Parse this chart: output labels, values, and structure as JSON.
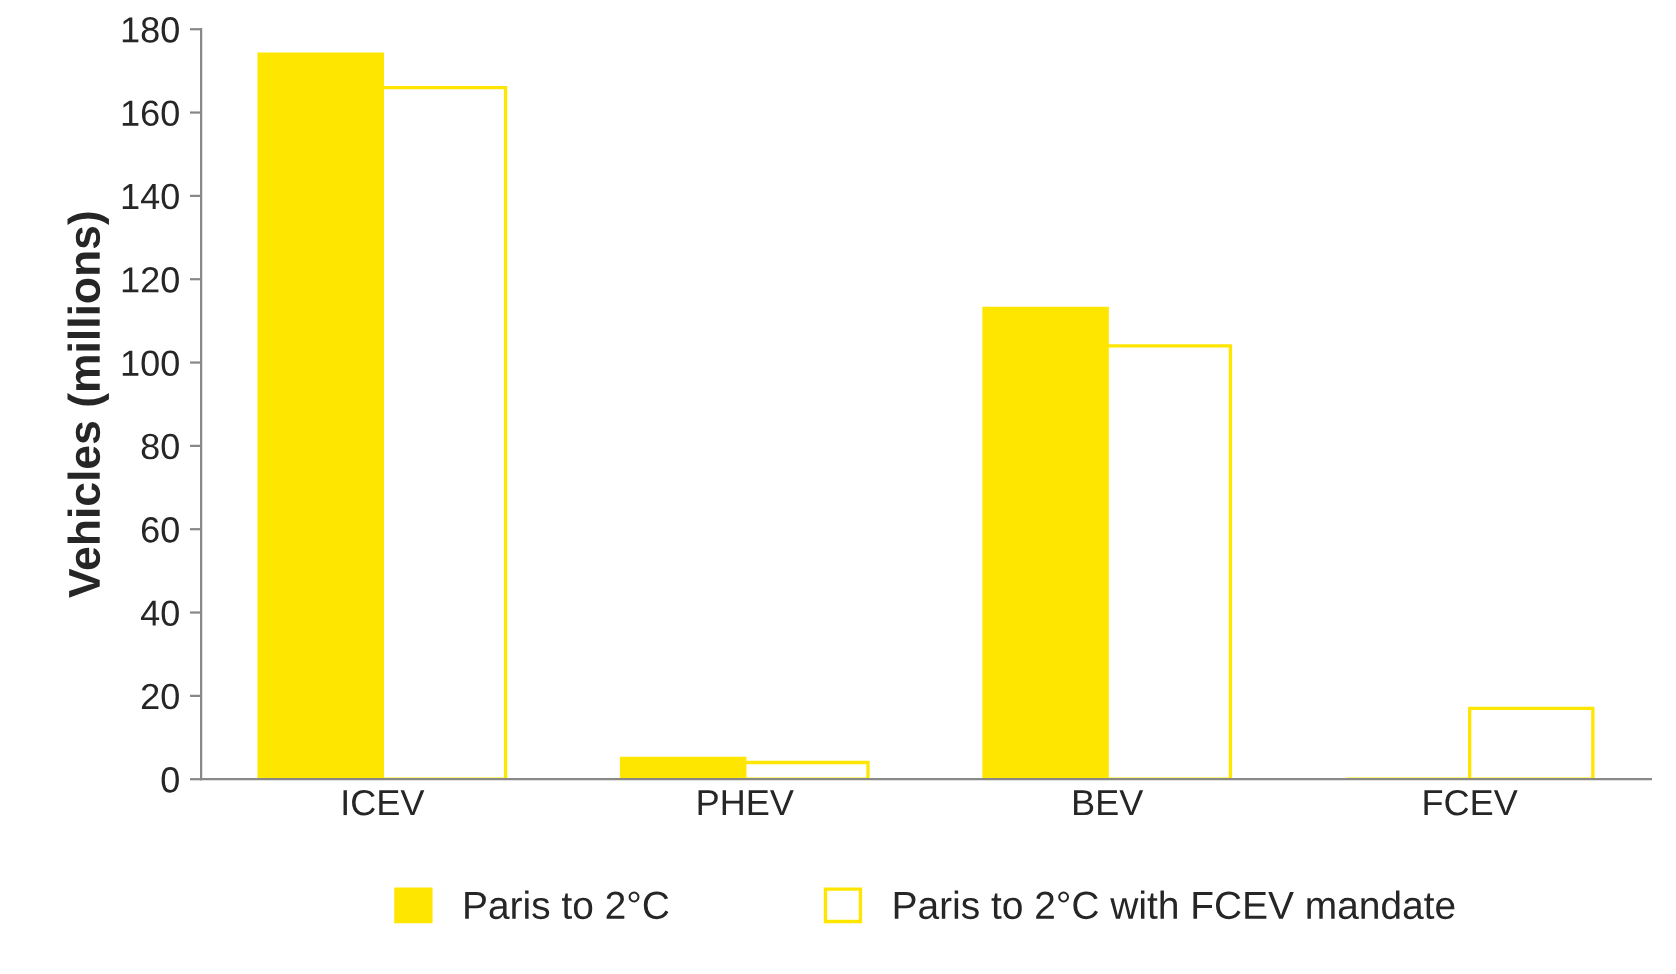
{
  "chart_data": {
    "type": "bar",
    "ylabel": "Vehicles (millions)",
    "categories": [
      "ICEV",
      "PHEV",
      "BEV",
      "FCEV"
    ],
    "series": [
      {
        "name": "Paris to 2°C",
        "color": "#ffe600",
        "values": [
          174,
          5,
          113,
          0
        ]
      },
      {
        "name": "Paris to 2°C with FCEV mandate",
        "color": "#ffffff",
        "values": [
          166,
          4,
          104,
          17
        ]
      }
    ],
    "ylim": [
      0,
      180
    ],
    "yticks": [
      0,
      20,
      40,
      60,
      80,
      100,
      120,
      140,
      160,
      180
    ],
    "grid": false,
    "legend": "bottom"
  }
}
